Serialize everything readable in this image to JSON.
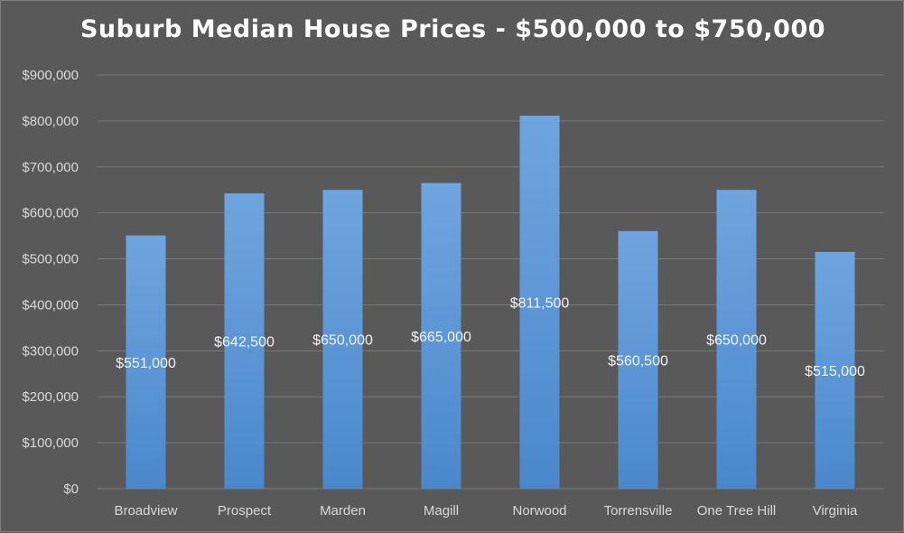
{
  "chart_data": {
    "type": "bar",
    "title": "Suburb Median House Prices - $500,000 to $750,000",
    "categories": [
      "Broadview",
      "Prospect",
      "Marden",
      "Magill",
      "Norwood",
      "Torrensville",
      "One Tree Hill",
      "Virginia"
    ],
    "values": [
      551000,
      642500,
      650000,
      665000,
      811500,
      560500,
      650000,
      515000
    ],
    "data_labels": [
      "$551,000",
      "$642,500",
      "$650,000",
      "$665,000",
      "$811,500",
      "$560,500",
      "$650,000",
      "$515,000"
    ],
    "y_ticks": [
      0,
      100000,
      200000,
      300000,
      400000,
      500000,
      600000,
      700000,
      800000,
      900000
    ],
    "y_tick_labels": [
      "$0",
      "$100,000",
      "$200,000",
      "$300,000",
      "$400,000",
      "$500,000",
      "$600,000",
      "$700,000",
      "$800,000",
      "$900,000"
    ],
    "ylim": [
      0,
      900000
    ],
    "xlabel": "",
    "ylabel": "",
    "grid": true,
    "legend": "none",
    "colors": {
      "background": "#595959",
      "bar_top": "#6fa5de",
      "bar_bottom": "#4a88cc",
      "gridline": "#7a7a7a",
      "text": "#d9d9d9",
      "title": "#ffffff"
    }
  }
}
